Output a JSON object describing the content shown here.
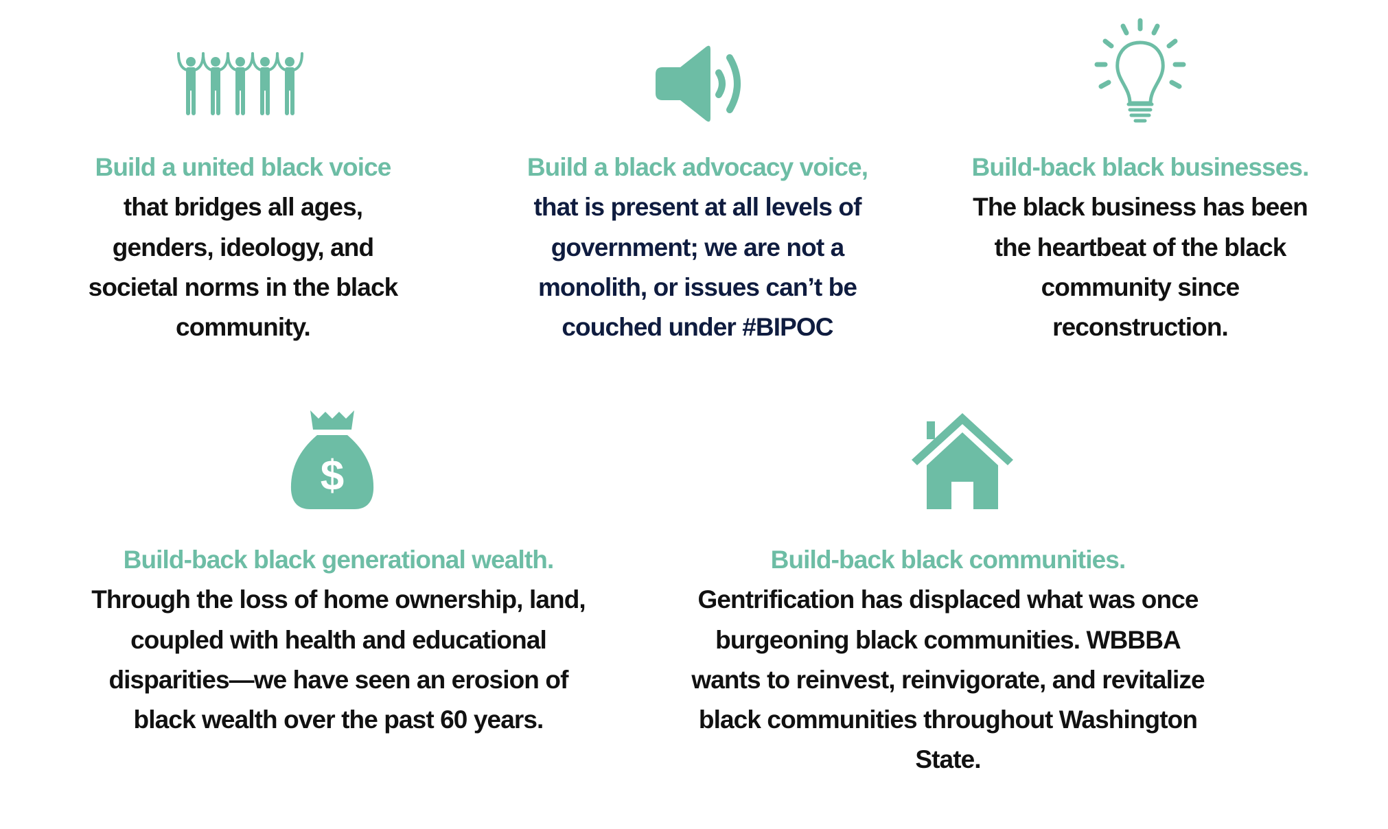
{
  "colors": {
    "accent": "#6dbda5",
    "text": "#111111",
    "navy": "#0f1c3f"
  },
  "items": [
    {
      "icon": "people-group-icon",
      "heading": "Build a united black voice",
      "body": "that bridges all ages, genders, ideology, and societal norms in the black community."
    },
    {
      "icon": "megaphone-speaker-icon",
      "heading": "Build a black advocacy voice,",
      "body": "that is present at all levels of government; we are not a monolith, or issues can’t be couched under #BIPOC"
    },
    {
      "icon": "lightbulb-icon",
      "heading": "Build-back black businesses.",
      "body": "The black business has been the heartbeat of the black community since reconstruction."
    },
    {
      "icon": "money-bag-icon",
      "heading": "Build-back black generational wealth.",
      "body": "Through the loss of home ownership, land, coupled with health and educational disparities—we have seen an erosion of black wealth over the past 60 years."
    },
    {
      "icon": "house-icon",
      "heading": "Build-back black communities.",
      "body": "Gentrification has displaced what was once burgeoning black communities. WBBBA wants to reinvest, reinvigorate, and revitalize black communities throughout Washington State."
    }
  ]
}
